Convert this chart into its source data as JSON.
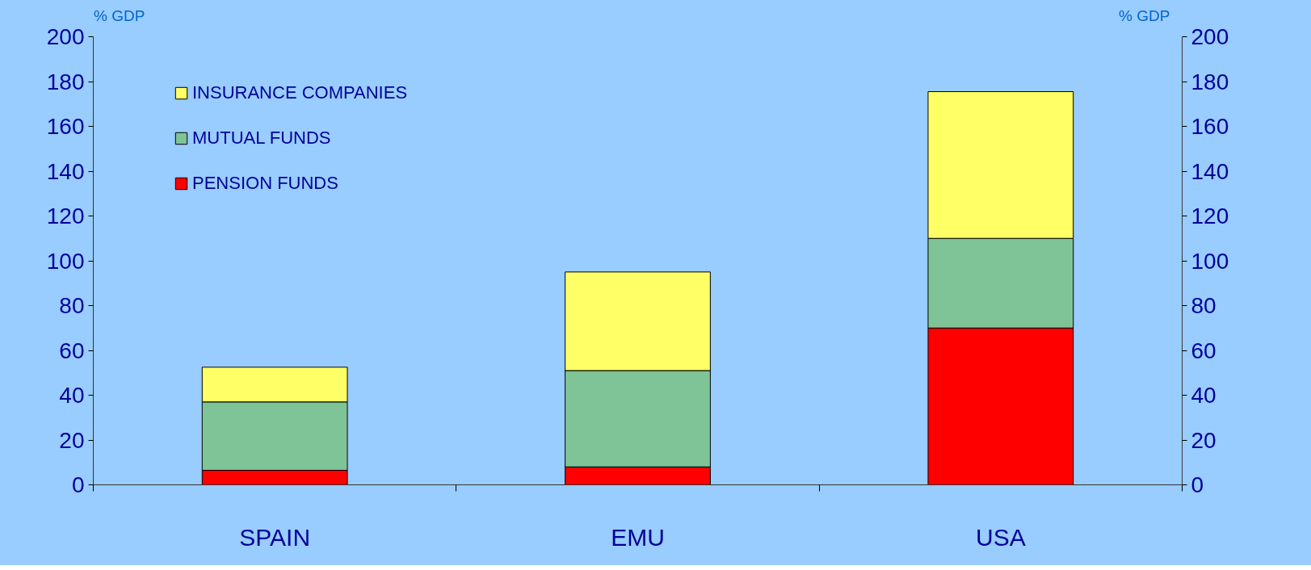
{
  "chart_data": {
    "type": "bar",
    "stacked": true,
    "categories": [
      "SPAIN",
      "EMU",
      "USA"
    ],
    "series": [
      {
        "name": "PENSION FUNDS",
        "color": "#ff0000",
        "values": [
          6.5,
          8,
          70
        ]
      },
      {
        "name": "MUTUAL FUNDS",
        "color": "#7fc497",
        "values": [
          30.5,
          43,
          40
        ]
      },
      {
        "name": "INSURANCE COMPANIES",
        "color": "#ffff66",
        "values": [
          15.5,
          44,
          65.5
        ]
      }
    ],
    "ylabel": "% GDP",
    "y2label": "% GDP",
    "ylim": [
      0,
      200
    ],
    "yticks": [
      0,
      20,
      40,
      60,
      80,
      100,
      120,
      140,
      160,
      180,
      200
    ],
    "y2lim": [
      0,
      200
    ],
    "y2ticks": [
      0,
      20,
      40,
      60,
      80,
      100,
      120,
      140,
      160,
      180,
      200
    ],
    "grid": false,
    "legend": "top left"
  }
}
